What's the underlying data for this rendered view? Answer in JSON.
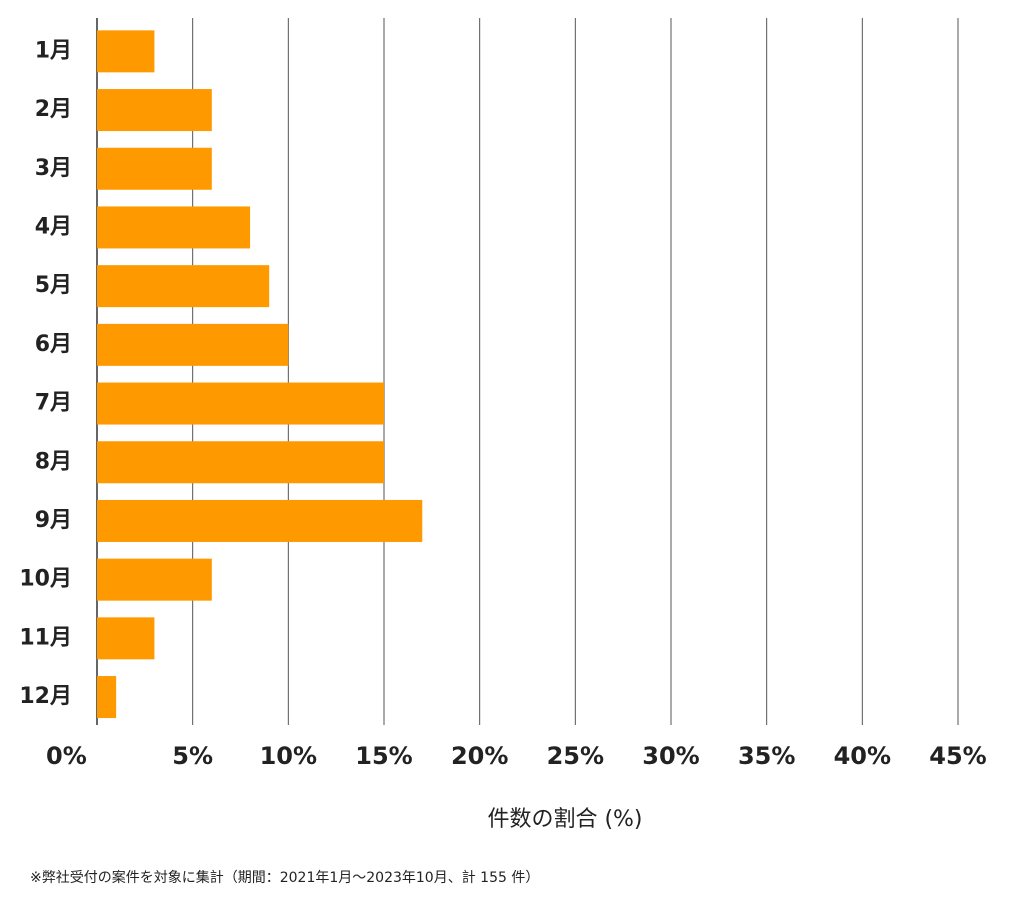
{
  "chart_data": {
    "type": "hbar",
    "categories": [
      "1月",
      "2月",
      "3月",
      "4月",
      "5月",
      "6月",
      "7月",
      "8月",
      "9月",
      "10月",
      "11月",
      "12月"
    ],
    "values": [
      3,
      6,
      6,
      8,
      9,
      10,
      15,
      15,
      17,
      6,
      3,
      1
    ],
    "color": "#ff9900",
    "xlim": [
      0,
      45
    ],
    "xticks": [
      {
        "value": 0,
        "label": "0%"
      },
      {
        "value": 5,
        "label": "5%"
      },
      {
        "value": 10,
        "label": "10%"
      },
      {
        "value": 15,
        "label": "15%"
      },
      {
        "value": 20,
        "label": "20%"
      },
      {
        "value": 25,
        "label": "25%"
      },
      {
        "value": 30,
        "label": "30%"
      },
      {
        "value": 35,
        "label": "35%"
      },
      {
        "value": 40,
        "label": "40%"
      },
      {
        "value": 45,
        "label": "45%"
      }
    ],
    "grid": true,
    "x_label": "件数の割合 (%)",
    "footnote": "※弊社受付の案件を対象に集計（期間：2021年1月～2023年10月、計 155 件）"
  }
}
